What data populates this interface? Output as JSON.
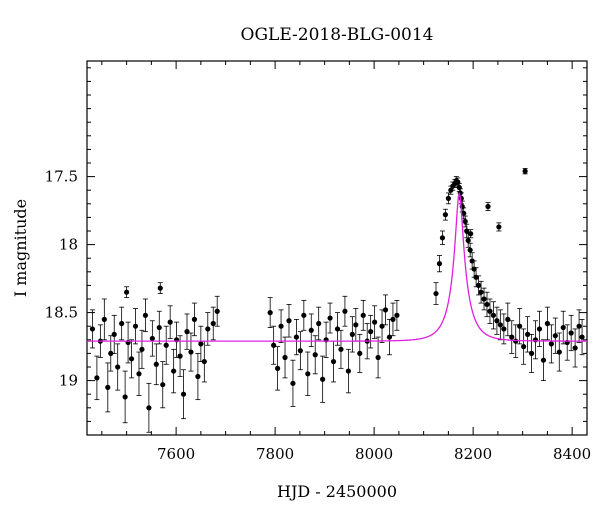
{
  "chart_data": {
    "type": "scatter",
    "title": "OGLE-2018-BLG-0014",
    "xlabel": "HJD - 2450000",
    "ylabel": "I magnitude",
    "xlim": [
      7420,
      8430
    ],
    "ylim": [
      19.4,
      16.65
    ],
    "y_inverted": true,
    "grid": false,
    "legend": "none",
    "x_ticks": [
      7600,
      7800,
      8000,
      8200,
      8400
    ],
    "y_ticks": [
      17.5,
      18,
      18.5,
      19
    ],
    "model_color": "#e020e0",
    "point_color": "#000000",
    "series": [
      {
        "type": "scatter_with_errorbars",
        "x": [
          7431,
          7440,
          7447,
          7455,
          7462,
          7468,
          7475,
          7482,
          7490,
          7497,
          7503,
          7510,
          7518,
          7525,
          7531,
          7538,
          7545,
          7552,
          7560,
          7566,
          7573,
          7580,
          7588,
          7595,
          7601,
          7608,
          7615,
          7622,
          7630,
          7637,
          7644,
          7650,
          7657,
          7664,
          7675,
          7683,
          7790,
          7797,
          7805,
          7812,
          7820,
          7828,
          7836,
          7843,
          7851,
          7858,
          7866,
          7873,
          7881,
          7888,
          7896,
          7903,
          7911,
          7918,
          7926,
          7933,
          7941,
          7948,
          7956,
          7963,
          7971,
          7978,
          7986,
          7993,
          8001,
          8008,
          8016,
          8023,
          8031,
          8038,
          8046,
          8125,
          8132,
          8138,
          8144,
          8150,
          8155,
          8159,
          8163,
          8166,
          8169,
          8172,
          8174,
          8176,
          8178,
          8181,
          8184,
          8187,
          8190,
          8194,
          8198,
          8202,
          8206,
          8211,
          8216,
          8222,
          8228,
          8234,
          8241,
          8248,
          8255,
          8262,
          8270,
          8278,
          8286,
          8294,
          8302,
          8310,
          8318,
          8326,
          8334,
          8342,
          8350,
          8358,
          8366,
          8374,
          8382,
          8390,
          8398,
          8406,
          8414,
          8420
        ],
        "y": [
          18.62,
          18.98,
          18.71,
          18.55,
          19.05,
          18.8,
          18.66,
          18.9,
          18.58,
          19.12,
          18.72,
          18.84,
          18.6,
          18.95,
          18.77,
          18.52,
          19.2,
          18.69,
          18.88,
          18.61,
          19.03,
          18.74,
          18.57,
          18.93,
          18.7,
          18.82,
          19.1,
          18.64,
          18.79,
          18.55,
          18.97,
          18.73,
          18.86,
          18.62,
          18.58,
          18.49,
          18.5,
          18.74,
          18.91,
          18.6,
          18.83,
          18.56,
          19.02,
          18.68,
          18.78,
          18.52,
          18.95,
          18.63,
          18.81,
          18.58,
          18.99,
          18.7,
          18.54,
          18.86,
          18.62,
          18.77,
          18.49,
          18.93,
          18.66,
          18.59,
          18.8,
          18.52,
          18.71,
          18.64,
          18.57,
          18.83,
          18.6,
          18.48,
          18.68,
          18.55,
          18.52,
          18.36,
          18.14,
          17.95,
          17.78,
          17.66,
          17.6,
          17.57,
          17.55,
          17.53,
          17.54,
          17.58,
          17.62,
          17.66,
          17.72,
          17.77,
          17.83,
          17.9,
          17.97,
          18.04,
          18.12,
          18.18,
          18.24,
          18.3,
          18.35,
          18.4,
          18.44,
          18.49,
          18.52,
          18.56,
          18.59,
          18.62,
          18.55,
          18.68,
          18.71,
          18.6,
          18.75,
          18.66,
          18.8,
          18.7,
          18.62,
          18.85,
          18.58,
          18.73,
          18.67,
          18.79,
          18.61,
          18.72,
          18.65,
          18.76,
          18.6,
          18.68
        ],
        "yerr": [
          0.14,
          0.16,
          0.12,
          0.15,
          0.18,
          0.13,
          0.14,
          0.17,
          0.12,
          0.19,
          0.15,
          0.14,
          0.13,
          0.16,
          0.14,
          0.12,
          0.18,
          0.13,
          0.15,
          0.12,
          0.17,
          0.14,
          0.12,
          0.16,
          0.13,
          0.15,
          0.18,
          0.13,
          0.14,
          0.12,
          0.17,
          0.13,
          0.15,
          0.12,
          0.12,
          0.11,
          0.11,
          0.14,
          0.16,
          0.12,
          0.15,
          0.12,
          0.17,
          0.13,
          0.14,
          0.11,
          0.16,
          0.12,
          0.14,
          0.12,
          0.17,
          0.13,
          0.11,
          0.15,
          0.12,
          0.14,
          0.11,
          0.16,
          0.13,
          0.12,
          0.14,
          0.11,
          0.13,
          0.12,
          0.12,
          0.15,
          0.12,
          0.11,
          0.13,
          0.12,
          0.11,
          0.08,
          0.06,
          0.05,
          0.04,
          0.04,
          0.03,
          0.03,
          0.03,
          0.03,
          0.03,
          0.03,
          0.03,
          0.04,
          0.04,
          0.04,
          0.04,
          0.05,
          0.05,
          0.05,
          0.06,
          0.06,
          0.07,
          0.07,
          0.08,
          0.08,
          0.09,
          0.09,
          0.1,
          0.1,
          0.11,
          0.11,
          0.12,
          0.12,
          0.12,
          0.13,
          0.13,
          0.13,
          0.14,
          0.14,
          0.13,
          0.15,
          0.12,
          0.14,
          0.13,
          0.14,
          0.12,
          0.13,
          0.13,
          0.14,
          0.12,
          0.13
        ]
      },
      {
        "type": "outliers",
        "x": [
          7500,
          7568,
          8195,
          8230,
          8252,
          8305
        ],
        "y": [
          18.35,
          18.32,
          17.92,
          17.72,
          17.87,
          17.46
        ],
        "yerr": [
          0.04,
          0.04,
          0.03,
          0.03,
          0.03,
          0.02
        ]
      },
      {
        "type": "model_curve",
        "t0": 8172,
        "tE": 34,
        "u0": 0.2,
        "base_mag": 18.71,
        "peak_mag": 17.62
      }
    ]
  }
}
